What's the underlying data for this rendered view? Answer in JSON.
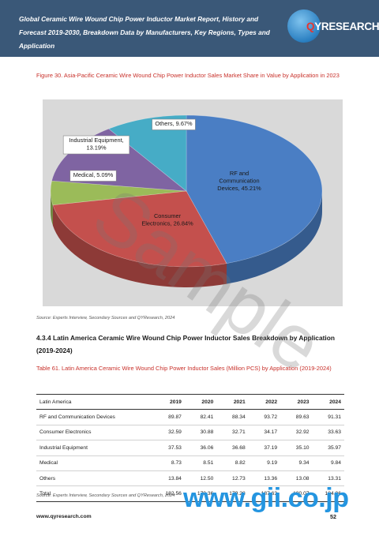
{
  "header": {
    "title": "Global Ceramic Wire Wound Chip Power Inductor Market Report, History and Forecast 2019-2030, Breakdown Data by Manufacturers, Key Regions, Types and Application",
    "logo_q": "Q",
    "logo_rest": "YRESEARCH"
  },
  "figure": {
    "caption": "Figure 30.   Asia-Pacific Ceramic Wire Wound Chip Power Inductor Sales Market Share in Value by Application in 2023",
    "source": "Source: Experts Interview, Secondary Sources and QYResearch, 2024"
  },
  "chart_data": {
    "type": "pie",
    "slices": [
      {
        "label": "RF and Communication Devices",
        "value": 45.21,
        "display": "RF and Communication Devices, 45.21%",
        "color": "#4a7ec4"
      },
      {
        "label": "Consumer Electronics",
        "value": 26.84,
        "display": "Consumer Electronics, 26.84%",
        "color": "#c4504d"
      },
      {
        "label": "Medical",
        "value": 5.09,
        "display": "Medical, 5.09%",
        "color": "#9bbb59"
      },
      {
        "label": "Industrial Equipment",
        "value": 13.19,
        "display": "Industrial Equipment, 13.19%",
        "color": "#7f64a2"
      },
      {
        "label": "Others",
        "value": 9.67,
        "display": "Others, 9.67%",
        "color": "#46acc6"
      }
    ],
    "labels_text": {
      "rf": [
        "RF and",
        "Communication",
        "Devices, 45.21%"
      ],
      "consumer": [
        "Consumer",
        "Electronics, 26.84%"
      ],
      "medical": "Medical, 5.09%",
      "industrial": [
        "Industrial Equipment,",
        "13.19%"
      ],
      "others": "Others, 9.67%"
    }
  },
  "section": {
    "title": "4.3.4   Latin America Ceramic Wire Wound Chip Power Inductor Sales Breakdown by Application (2019-2024)"
  },
  "table": {
    "caption": "Table 61.   Latin America Ceramic Wire Wound Chip Power Inductor Sales (Million PCS) by Application (2019-2024)",
    "headers": [
      "Latin America",
      "2019",
      "2020",
      "2021",
      "2022",
      "2023",
      "2024"
    ],
    "rows": [
      [
        "RF and Communication Devices",
        "89.87",
        "82.41",
        "88.34",
        "93.72",
        "89.63",
        "91.31"
      ],
      [
        "Consumer Electronics",
        "32.59",
        "30.88",
        "32.71",
        "34.17",
        "32.92",
        "33.63"
      ],
      [
        "Industrial Equipment",
        "37.53",
        "36.06",
        "36.68",
        "37.19",
        "35.10",
        "35.97"
      ],
      [
        "Medical",
        "8.73",
        "8.51",
        "8.82",
        "9.19",
        "9.34",
        "9.84"
      ],
      [
        "Others",
        "13.84",
        "12.50",
        "12.73",
        "13.36",
        "13.08",
        "13.31"
      ],
      [
        "Total",
        "182.56",
        "170.36",
        "179.28",
        "187.63",
        "180.07",
        "184.06"
      ]
    ],
    "source": "Source: Experts Interview, Secondary Sources and QYResearch, 2024"
  },
  "footer": {
    "url": "www.qyresearch.com",
    "page": "52"
  },
  "watermark": "Sample",
  "gii": "www.gii.co.jp"
}
